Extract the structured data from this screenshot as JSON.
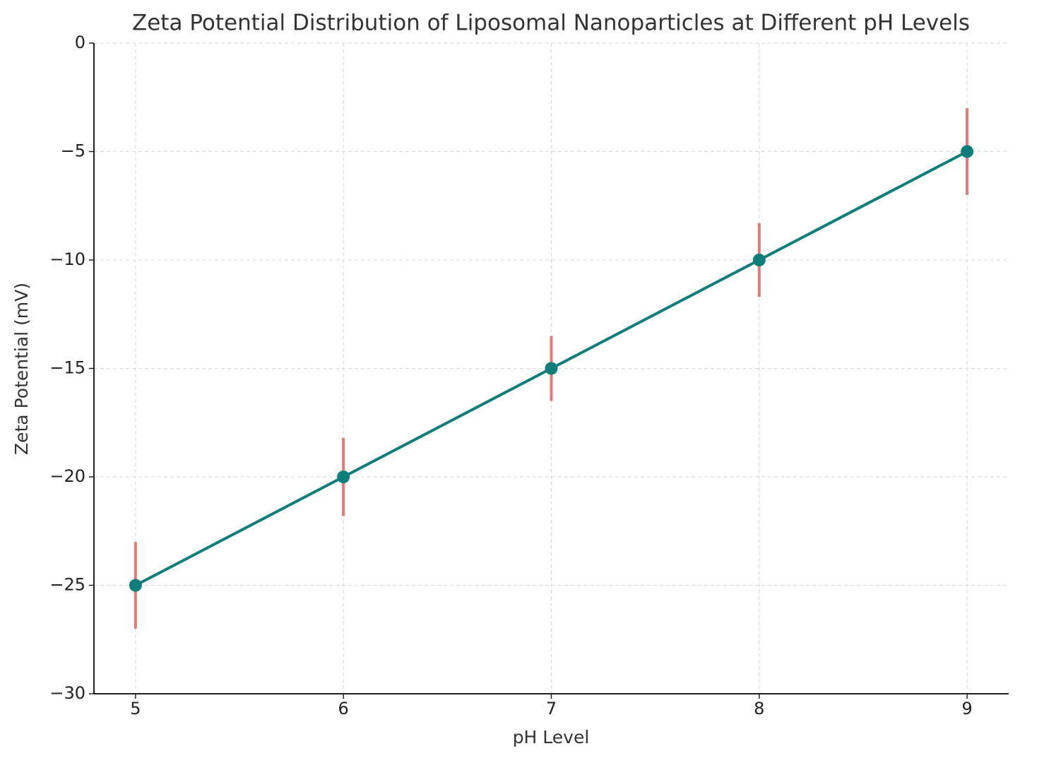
{
  "chart_data": {
    "type": "line",
    "title": "Zeta Potential Distribution of Liposomal Nanoparticles at Different pH Levels",
    "xlabel": "pH Level",
    "ylabel": "Zeta Potential (mV)",
    "x": [
      5,
      6,
      7,
      8,
      9
    ],
    "series": [
      {
        "color": "#0f7e7a",
        "values": [
          -25,
          -20,
          -15,
          -10,
          -5
        ],
        "errors": [
          2.0,
          1.8,
          1.5,
          1.7,
          2.0
        ],
        "error_color": "#e07c78"
      }
    ],
    "xlim": [
      4.8,
      9.2
    ],
    "xticks": [
      5,
      6,
      7,
      8,
      9
    ],
    "ylim": [
      -30,
      0
    ],
    "yticks": [
      {
        "value": -30,
        "label": "−30"
      },
      {
        "value": -25,
        "label": "−25"
      },
      {
        "value": -20,
        "label": "−20"
      },
      {
        "value": -15,
        "label": "−15"
      },
      {
        "value": -10,
        "label": "−10"
      },
      {
        "value": -5,
        "label": "−5"
      },
      0
    ],
    "grid": true
  }
}
